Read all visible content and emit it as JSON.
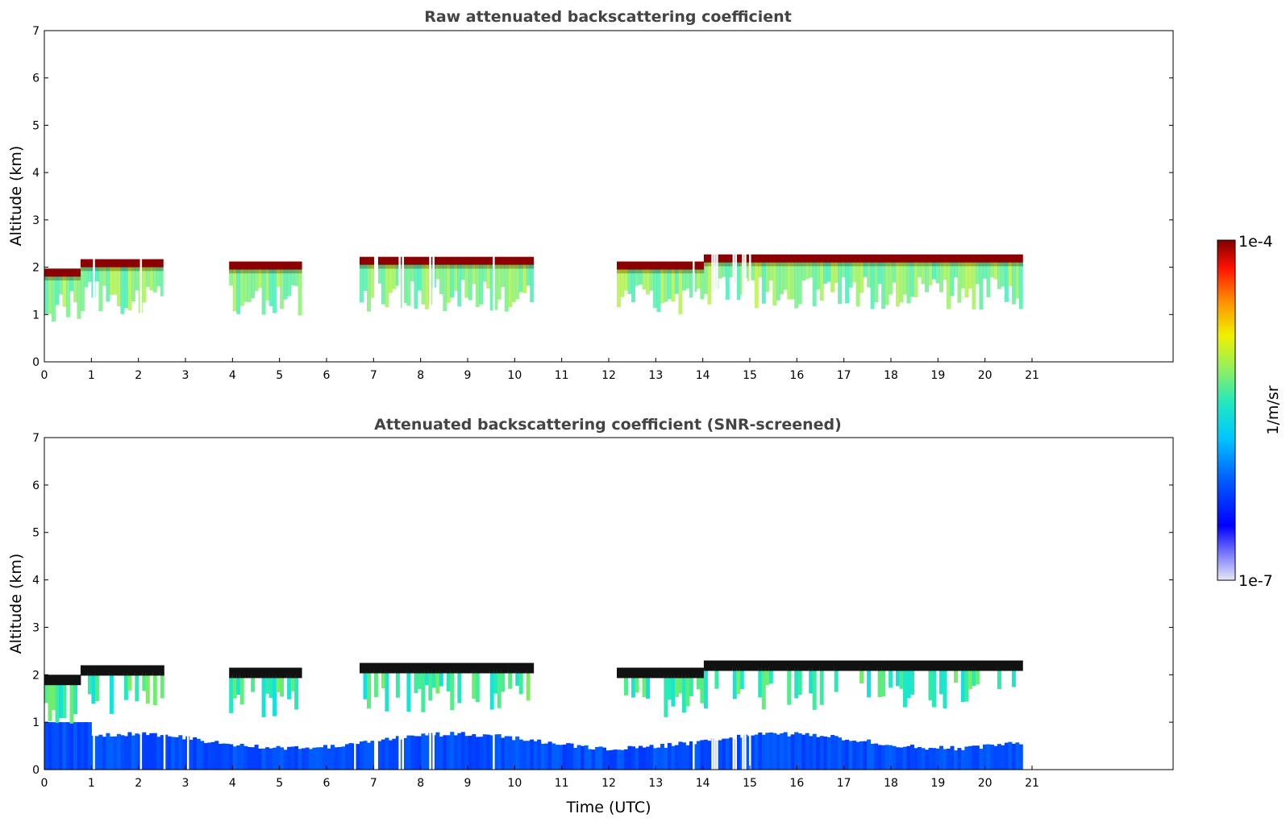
{
  "chart_data": [
    {
      "type": "heatmap",
      "title": "Raw attenuated backscattering coefficient",
      "xlabel": "",
      "ylabel": "Altitude (km)",
      "xlim": [
        0,
        24
      ],
      "ylim": [
        0,
        7
      ],
      "x_ticks": [
        0,
        1,
        2,
        3,
        4,
        5,
        6,
        7,
        8,
        9,
        10,
        11,
        12,
        13,
        14,
        15,
        16,
        17,
        18,
        19,
        20,
        21
      ],
      "y_ticks": [
        0,
        1,
        2,
        3,
        4,
        5,
        6,
        7
      ],
      "data_end_time": 20.8,
      "cloud_layer_km": [
        {
          "from": 0,
          "to": 0.8,
          "base": 1.85
        },
        {
          "from": 0.8,
          "to": 2.55,
          "base": 2.05
        },
        {
          "from": 3.9,
          "to": 5.5,
          "base": 2.0
        },
        {
          "from": 6.7,
          "to": 10.4,
          "base": 2.1
        },
        {
          "from": 12.2,
          "to": 14.0,
          "base": 2.0
        },
        {
          "from": 14.0,
          "to": 20.8,
          "base": 2.15
        }
      ],
      "colormap": "jet",
      "grid": false
    },
    {
      "type": "heatmap",
      "title": "Attenuated backscattering coefficient (SNR-screened)",
      "xlabel": "Time (UTC)",
      "ylabel": "Altitude (km)",
      "xlim": [
        0,
        24
      ],
      "ylim": [
        0,
        7
      ],
      "x_ticks": [
        0,
        1,
        2,
        3,
        4,
        5,
        6,
        7,
        8,
        9,
        10,
        11,
        12,
        13,
        14,
        15,
        16,
        17,
        18,
        19,
        20,
        21
      ],
      "y_ticks": [
        0,
        1,
        2,
        3,
        4,
        5,
        6,
        7
      ],
      "data_end_time": 20.8,
      "colormap": "jet",
      "grid": false
    }
  ],
  "colorbar": {
    "label": "1/m/sr",
    "max_label": "1e-4",
    "min_label": "1e-7",
    "scale": "log",
    "range": [
      1e-07,
      0.0001
    ]
  }
}
